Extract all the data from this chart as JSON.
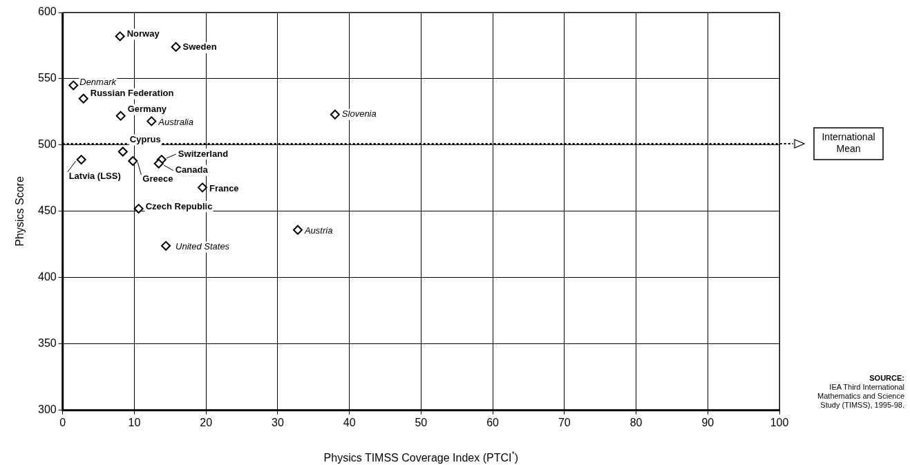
{
  "chart_data": {
    "type": "scatter",
    "xlabel": "Physics TIMSS Coverage Index (PTCI$^{*}$)",
    "ylabel": "Physics Score",
    "series": [
      {
        "color": "#000000",
        "x": [
          8.0,
          15.8,
          2.9,
          8.1,
          8.4,
          2.6,
          9.8,
          13.8,
          13.4,
          19.5,
          10.6
        ],
        "values": [
          582,
          574,
          535,
          522,
          495,
          489,
          488,
          489,
          486,
          468,
          452
        ],
        "value_labels": [
          "Norway",
          "Sweden",
          "Russian Federation",
          "Germany",
          "Cyprus",
          "Latvia (LSS)",
          "Greece",
          "Switzerland",
          "Canada",
          "France",
          "Czech Republic"
        ]
      },
      {
        "color": "#000000",
        "x": [
          1.5,
          12.4,
          38.0,
          14.4,
          32.8
        ],
        "values": [
          545,
          518,
          523,
          424,
          436
        ],
        "value_labels": [
          "Denmark",
          "Australia",
          "Slovenia",
          "United States",
          "Austria"
        ]
      }
    ],
    "xlim": [
      0,
      100
    ],
    "xticks": [
      0,
      10,
      20,
      30,
      40,
      50,
      60,
      70,
      80,
      90,
      100
    ],
    "ylim": [
      300,
      600
    ],
    "yticks": [
      300,
      350,
      400,
      450,
      500,
      550,
      600
    ],
    "grid": true,
    "marker": "diamond",
    "ref_lines": [
      {
        "axis": "y",
        "value": 501,
        "label": "International Mean",
        "line_style": "dotted",
        "color": "#000000"
      }
    ],
    "annotations": [
      "SOURCE:",
      "IEA Third International Mathematics and Science Study (TIMSS), 1995-98."
    ]
  }
}
